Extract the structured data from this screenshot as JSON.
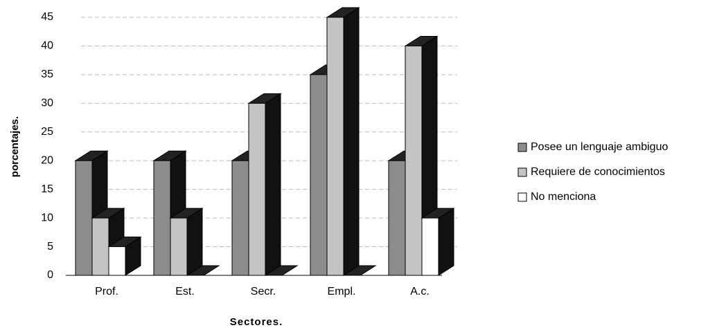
{
  "chart_data": {
    "type": "bar3d",
    "x_label": "Sectores.",
    "y_label": "porcentajes.",
    "categories": [
      "Prof.",
      "Est.",
      "Secr.",
      "Empl.",
      "A.c."
    ],
    "series": [
      {
        "name": "Posee un lenguaje ambiguo",
        "color": "#8c8c8c",
        "values": [
          20,
          20,
          20,
          35,
          20
        ]
      },
      {
        "name": "Requiere de conocimientos",
        "color": "#c4c4c4",
        "values": [
          10,
          10,
          30,
          45,
          40
        ]
      },
      {
        "name": "No menciona",
        "color": "#ffffff",
        "values": [
          5,
          0,
          0,
          0,
          10
        ]
      }
    ],
    "ylim": [
      0,
      45
    ],
    "yticks": [
      0,
      5,
      10,
      15,
      20,
      25,
      30,
      35,
      40,
      45
    ],
    "grid": true,
    "legend": "right"
  }
}
